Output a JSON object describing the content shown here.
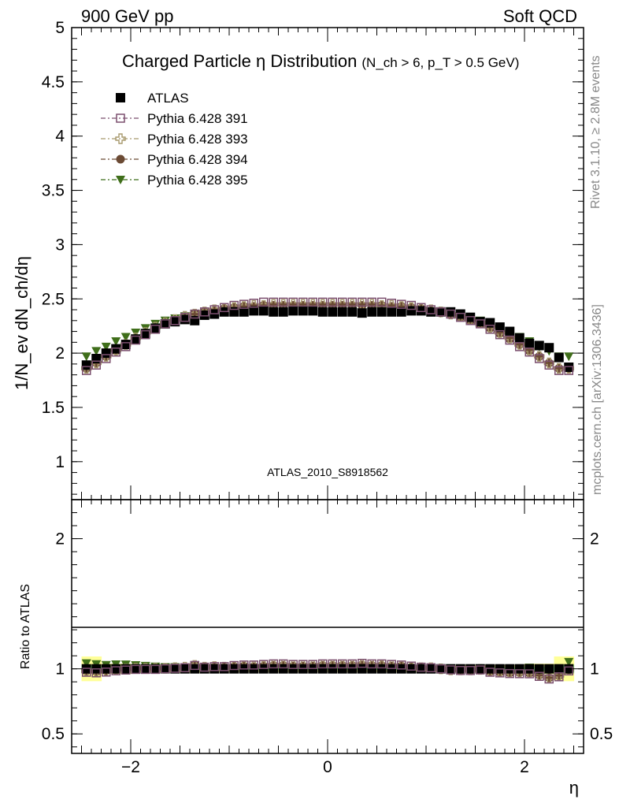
{
  "header": {
    "left": "900 GeV pp",
    "right": "Soft QCD"
  },
  "side": {
    "rivet": "Rivet 3.1.10, ≥ 2.8M events",
    "mcplots": "mcplots.cern.ch [arXiv:1306.3436]"
  },
  "chart_data": [
    {
      "type": "scatter",
      "title": "Charged Particle η Distribution",
      "subtitle": "(N_ch > 6, p_T > 0.5 GeV)",
      "ylabel": "1/N_ev dN_ch/dη",
      "watermark": "ATLAS_2010_S8918562",
      "ylim": [
        0.65,
        5.0
      ],
      "y_ticks": [
        "1",
        "1.5",
        "2",
        "2.5",
        "3",
        "3.5",
        "4",
        "4.5",
        "5"
      ],
      "legend_position": "top-left",
      "x": [
        -2.45,
        -2.35,
        -2.25,
        -2.15,
        -2.05,
        -1.95,
        -1.85,
        -1.75,
        -1.65,
        -1.55,
        -1.45,
        -1.35,
        -1.25,
        -1.15,
        -1.05,
        -0.95,
        -0.85,
        -0.75,
        -0.65,
        -0.55,
        -0.45,
        -0.35,
        -0.25,
        -0.15,
        -0.05,
        0.05,
        0.15,
        0.25,
        0.35,
        0.45,
        0.55,
        0.65,
        0.75,
        0.85,
        0.95,
        1.05,
        1.15,
        1.25,
        1.35,
        1.45,
        1.55,
        1.65,
        1.75,
        1.85,
        1.95,
        2.05,
        2.15,
        2.25,
        2.35,
        2.45
      ],
      "series": [
        {
          "name": "ATLAS",
          "color": "#000000",
          "marker": "square-filled",
          "values": [
            1.89,
            1.95,
            2.0,
            2.04,
            2.08,
            2.13,
            2.18,
            2.23,
            2.27,
            2.29,
            2.31,
            2.3,
            2.35,
            2.36,
            2.38,
            2.38,
            2.38,
            2.39,
            2.39,
            2.38,
            2.38,
            2.39,
            2.39,
            2.39,
            2.38,
            2.38,
            2.38,
            2.38,
            2.37,
            2.38,
            2.38,
            2.38,
            2.38,
            2.39,
            2.39,
            2.38,
            2.38,
            2.38,
            2.36,
            2.33,
            2.29,
            2.28,
            2.24,
            2.2,
            2.14,
            2.09,
            2.07,
            2.05,
            1.96,
            1.87
          ]
        },
        {
          "name": "Pythia 6.428 391",
          "color": "#7b4f6e",
          "marker": "square-open",
          "values": [
            1.84,
            1.89,
            1.95,
            2.01,
            2.06,
            2.12,
            2.17,
            2.22,
            2.27,
            2.3,
            2.33,
            2.36,
            2.38,
            2.4,
            2.42,
            2.44,
            2.45,
            2.46,
            2.47,
            2.47,
            2.47,
            2.47,
            2.47,
            2.47,
            2.47,
            2.47,
            2.47,
            2.47,
            2.47,
            2.47,
            2.47,
            2.46,
            2.45,
            2.44,
            2.42,
            2.4,
            2.38,
            2.36,
            2.33,
            2.3,
            2.27,
            2.22,
            2.17,
            2.12,
            2.06,
            2.01,
            1.95,
            1.89,
            1.84,
            1.84
          ]
        },
        {
          "name": "Pythia 6.428 393",
          "color": "#a89a6e",
          "marker": "cross-open",
          "values": [
            1.86,
            1.91,
            1.97,
            2.03,
            2.08,
            2.14,
            2.19,
            2.24,
            2.28,
            2.31,
            2.34,
            2.36,
            2.38,
            2.4,
            2.41,
            2.42,
            2.43,
            2.44,
            2.44,
            2.45,
            2.45,
            2.45,
            2.45,
            2.45,
            2.45,
            2.45,
            2.45,
            2.45,
            2.45,
            2.45,
            2.44,
            2.44,
            2.43,
            2.42,
            2.41,
            2.4,
            2.38,
            2.36,
            2.34,
            2.31,
            2.28,
            2.24,
            2.19,
            2.14,
            2.08,
            2.03,
            1.97,
            1.91,
            1.86,
            1.86
          ]
        },
        {
          "name": "Pythia 6.428 394",
          "color": "#6b4a34",
          "marker": "circle-filled",
          "values": [
            1.86,
            1.91,
            1.97,
            2.02,
            2.08,
            2.13,
            2.18,
            2.23,
            2.27,
            2.3,
            2.33,
            2.36,
            2.38,
            2.39,
            2.41,
            2.42,
            2.43,
            2.43,
            2.44,
            2.44,
            2.44,
            2.44,
            2.44,
            2.44,
            2.44,
            2.44,
            2.44,
            2.44,
            2.44,
            2.44,
            2.44,
            2.43,
            2.43,
            2.42,
            2.41,
            2.39,
            2.38,
            2.36,
            2.33,
            2.3,
            2.27,
            2.23,
            2.18,
            2.13,
            2.08,
            2.02,
            1.97,
            1.91,
            1.86,
            1.86
          ]
        },
        {
          "name": "Pythia 6.428 395",
          "color": "#3f6e1a",
          "marker": "triangle-down-filled",
          "values": [
            1.97,
            2.02,
            2.06,
            2.11,
            2.15,
            2.19,
            2.23,
            2.27,
            2.3,
            2.32,
            2.34,
            2.36,
            2.37,
            2.38,
            2.39,
            2.39,
            2.4,
            2.4,
            2.4,
            2.4,
            2.4,
            2.4,
            2.4,
            2.4,
            2.4,
            2.4,
            2.4,
            2.4,
            2.4,
            2.4,
            2.4,
            2.4,
            2.4,
            2.39,
            2.39,
            2.38,
            2.37,
            2.36,
            2.34,
            2.32,
            2.3,
            2.27,
            2.23,
            2.19,
            2.15,
            2.11,
            2.06,
            2.02,
            1.97,
            1.97
          ]
        }
      ]
    },
    {
      "type": "scatter",
      "xlabel": "η",
      "ylabel": "Ratio to ATLAS",
      "xlim": [
        -2.6,
        2.6
      ],
      "ylim": [
        0.35,
        2.3
      ],
      "x_ticks": [
        "−2",
        "0",
        "2"
      ],
      "y_ticks": [
        "0.5",
        "1",
        "2"
      ],
      "reference_line": 1.0,
      "band_colors": {
        "outer": "#ffff99",
        "inner": "#99ff99"
      },
      "band_outer_halfwidth": [
        0.095,
        0.095,
        0.04,
        0.04,
        0.04,
        0.03,
        0.03,
        0.03,
        0.03,
        0.03,
        0.03,
        0.03,
        0.025,
        0.025,
        0.025,
        0.025,
        0.025,
        0.025,
        0.025,
        0.025,
        0.025,
        0.025,
        0.025,
        0.025,
        0.025,
        0.025,
        0.025,
        0.025,
        0.025,
        0.025,
        0.025,
        0.025,
        0.025,
        0.025,
        0.025,
        0.025,
        0.025,
        0.025,
        0.03,
        0.03,
        0.03,
        0.03,
        0.03,
        0.03,
        0.03,
        0.04,
        0.04,
        0.04,
        0.095,
        0.095
      ],
      "band_inner_halfwidth": [
        0.03,
        0.03,
        0.015,
        0.015,
        0.015,
        0.01,
        0.01,
        0.01,
        0.01,
        0.01,
        0.01,
        0.01,
        0.008,
        0.008,
        0.008,
        0.008,
        0.008,
        0.008,
        0.008,
        0.008,
        0.008,
        0.008,
        0.008,
        0.008,
        0.008,
        0.008,
        0.008,
        0.008,
        0.008,
        0.008,
        0.008,
        0.008,
        0.008,
        0.008,
        0.008,
        0.008,
        0.008,
        0.008,
        0.01,
        0.01,
        0.01,
        0.01,
        0.01,
        0.01,
        0.01,
        0.015,
        0.015,
        0.015,
        0.03,
        0.03
      ]
    }
  ]
}
